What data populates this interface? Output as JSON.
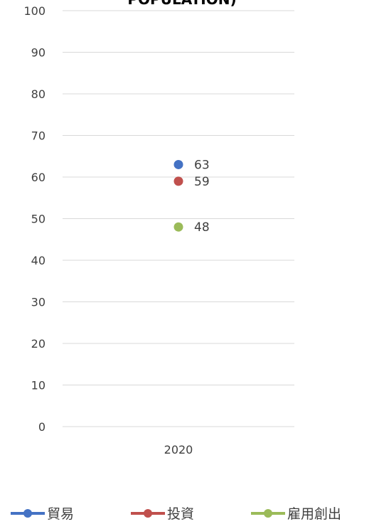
{
  "chart_data": {
    "type": "scatter",
    "title": "POPULATION)",
    "categories": [
      "2020"
    ],
    "series": [
      {
        "name": "貿易",
        "color": "#4472C4",
        "values": [
          63
        ]
      },
      {
        "name": "投資",
        "color": "#C0504D",
        "values": [
          59
        ]
      },
      {
        "name": "雇用創出",
        "color": "#9BBB59",
        "values": [
          48
        ]
      }
    ],
    "ylim": [
      0,
      100
    ],
    "yticks": [
      "0",
      "10",
      "20",
      "30",
      "40",
      "50",
      "60",
      "70",
      "80",
      "90",
      "100"
    ],
    "grid": true,
    "legend_position": "bottom"
  }
}
